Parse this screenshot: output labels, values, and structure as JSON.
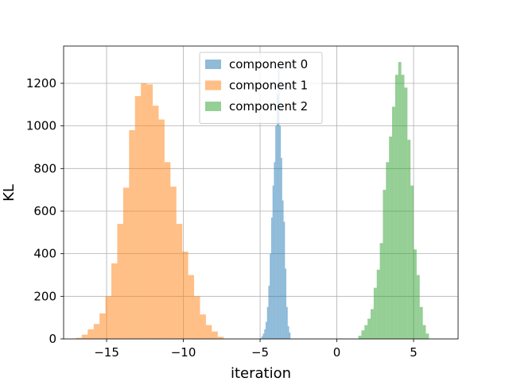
{
  "chart_data": {
    "type": "bar",
    "subtype": "histogram",
    "title": "",
    "xlabel": "iteration",
    "ylabel": "KL",
    "xlim": [
      -17.8,
      7.9
    ],
    "ylim": [
      0,
      1375
    ],
    "xticks": [
      -15,
      -10,
      -5,
      0,
      5
    ],
    "xtick_labels": [
      "−15",
      "−10",
      "−5",
      "0",
      "5"
    ],
    "yticks": [
      0,
      200,
      400,
      600,
      800,
      1000,
      1200
    ],
    "ytick_labels": [
      "0",
      "200",
      "400",
      "600",
      "800",
      "1000",
      "1200"
    ],
    "grid": true,
    "legend_position": "upper-center",
    "bar_opacity": 0.5,
    "series": [
      {
        "name": "component 0",
        "color": "#1f77b4",
        "bin_start": -5.0,
        "bin_width": 0.09,
        "counts": [
          3,
          12,
          25,
          45,
          80,
          150,
          250,
          400,
          570,
          720,
          830,
          1000,
          1150,
          1290,
          1000,
          850,
          650,
          550,
          330,
          150,
          60,
          30
        ]
      },
      {
        "name": "component 1",
        "color": "#ff7f0e",
        "bin_start": -17.0,
        "bin_width": 0.385,
        "counts": [
          5,
          20,
          45,
          70,
          120,
          200,
          355,
          540,
          710,
          980,
          1140,
          1200,
          1195,
          1095,
          1030,
          830,
          715,
          540,
          410,
          300,
          200,
          115,
          65,
          35,
          10
        ]
      },
      {
        "name": "component 2",
        "color": "#2ca02c",
        "bin_start": 1.4,
        "bin_width": 0.2,
        "counts": [
          15,
          40,
          65,
          95,
          140,
          240,
          325,
          450,
          700,
          830,
          950,
          1090,
          1240,
          1300,
          1240,
          1180,
          935,
          720,
          420,
          300,
          150,
          65,
          25
        ]
      }
    ]
  }
}
